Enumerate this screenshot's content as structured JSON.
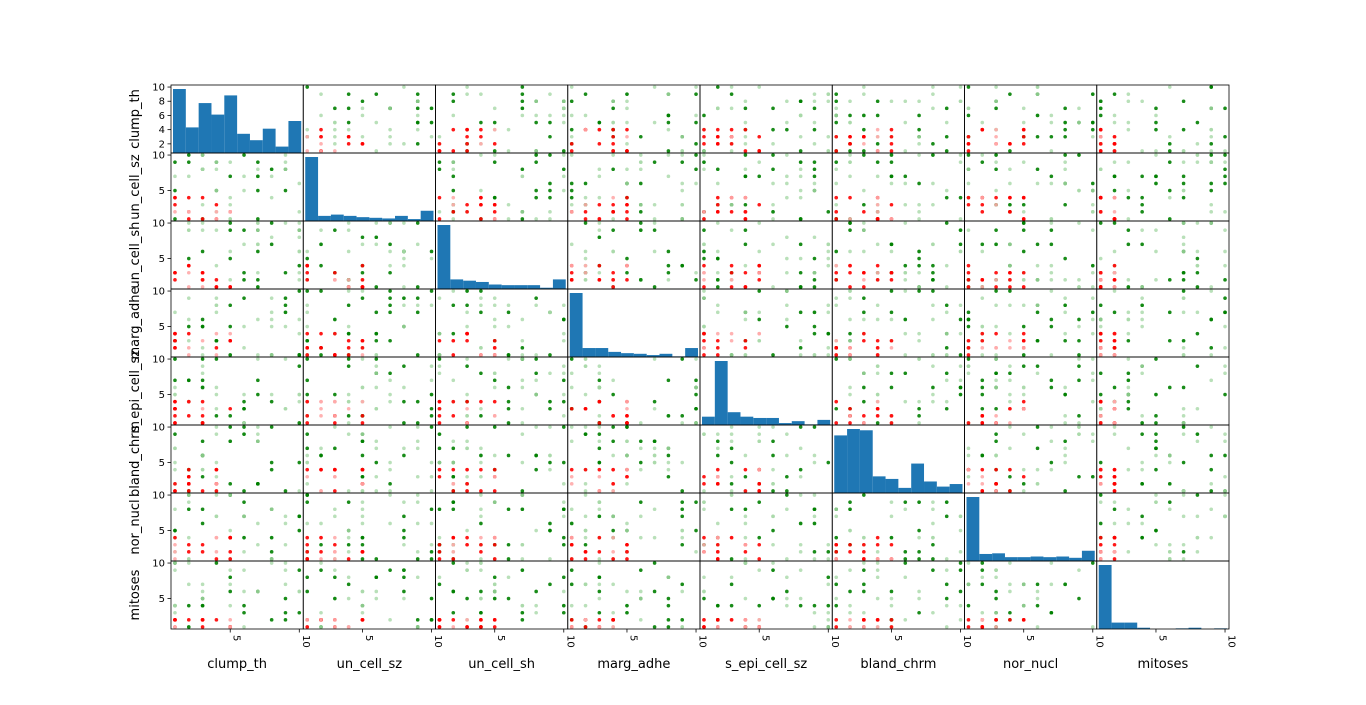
{
  "chart_data": {
    "type": "scatter",
    "subtype": "scatter-matrix",
    "variables": [
      "clump_th",
      "un_cell_sz",
      "un_cell_sh",
      "marg_adhe",
      "s_epi_cell_sz",
      "bland_chrm",
      "nor_nucl",
      "mitoses"
    ],
    "row_labels": [
      "clump_th",
      "un_cell_sz",
      "un_cell_sh",
      "marg_adhe",
      "s_epi_cell_sz",
      "bland_chrm",
      "nor_nucl",
      "mitoses"
    ],
    "column_labels": [
      "clump_th",
      "un_cell_sz",
      "un_cell_sh",
      "marg_adhe",
      "s_epi_cell_sz",
      "bland_chrm",
      "nor_nucl",
      "mitoses"
    ],
    "value_range": [
      1,
      10
    ],
    "x_tick_labels": [
      "5",
      "10"
    ],
    "y_tick_labels_first_row": [
      "2",
      "4",
      "6",
      "8",
      "10"
    ],
    "y_tick_labels_other_rows": [
      "5",
      "10"
    ],
    "diagonal_type": "histogram",
    "diagonal_bins": 10,
    "histogram_relative_heights": {
      "clump_th": [
        1.0,
        0.4,
        0.78,
        0.6,
        0.9,
        0.3,
        0.2,
        0.38,
        0.1,
        0.5
      ],
      "un_cell_sz": [
        1.0,
        0.08,
        0.1,
        0.08,
        0.06,
        0.05,
        0.04,
        0.08,
        0.03,
        0.16
      ],
      "un_cell_sh": [
        1.0,
        0.15,
        0.13,
        0.11,
        0.07,
        0.06,
        0.06,
        0.06,
        0.02,
        0.15
      ],
      "marg_adhe": [
        1.0,
        0.14,
        0.14,
        0.08,
        0.06,
        0.05,
        0.03,
        0.05,
        0.01,
        0.14
      ],
      "s_epi_cell_sz": [
        0.13,
        1.0,
        0.2,
        0.13,
        0.11,
        0.11,
        0.03,
        0.06,
        0.01,
        0.08
      ],
      "bland_chrm": [
        0.9,
        1.0,
        0.98,
        0.26,
        0.22,
        0.08,
        0.46,
        0.18,
        0.1,
        0.14
      ],
      "nor_nucl": [
        1.0,
        0.11,
        0.12,
        0.06,
        0.06,
        0.07,
        0.06,
        0.07,
        0.05,
        0.16
      ],
      "mitoses": [
        1.0,
        0.1,
        0.1,
        0.02,
        0.0,
        0.0,
        0.01,
        0.02,
        0.0,
        0.01
      ]
    },
    "point_classes": [
      {
        "color": "#ff0000",
        "light_color": "#ffaaaa"
      },
      {
        "color": "#008000",
        "light_color": "#a8d8a8"
      }
    ],
    "hist_color": "#1f77b4",
    "grid": false,
    "legend": "none"
  }
}
